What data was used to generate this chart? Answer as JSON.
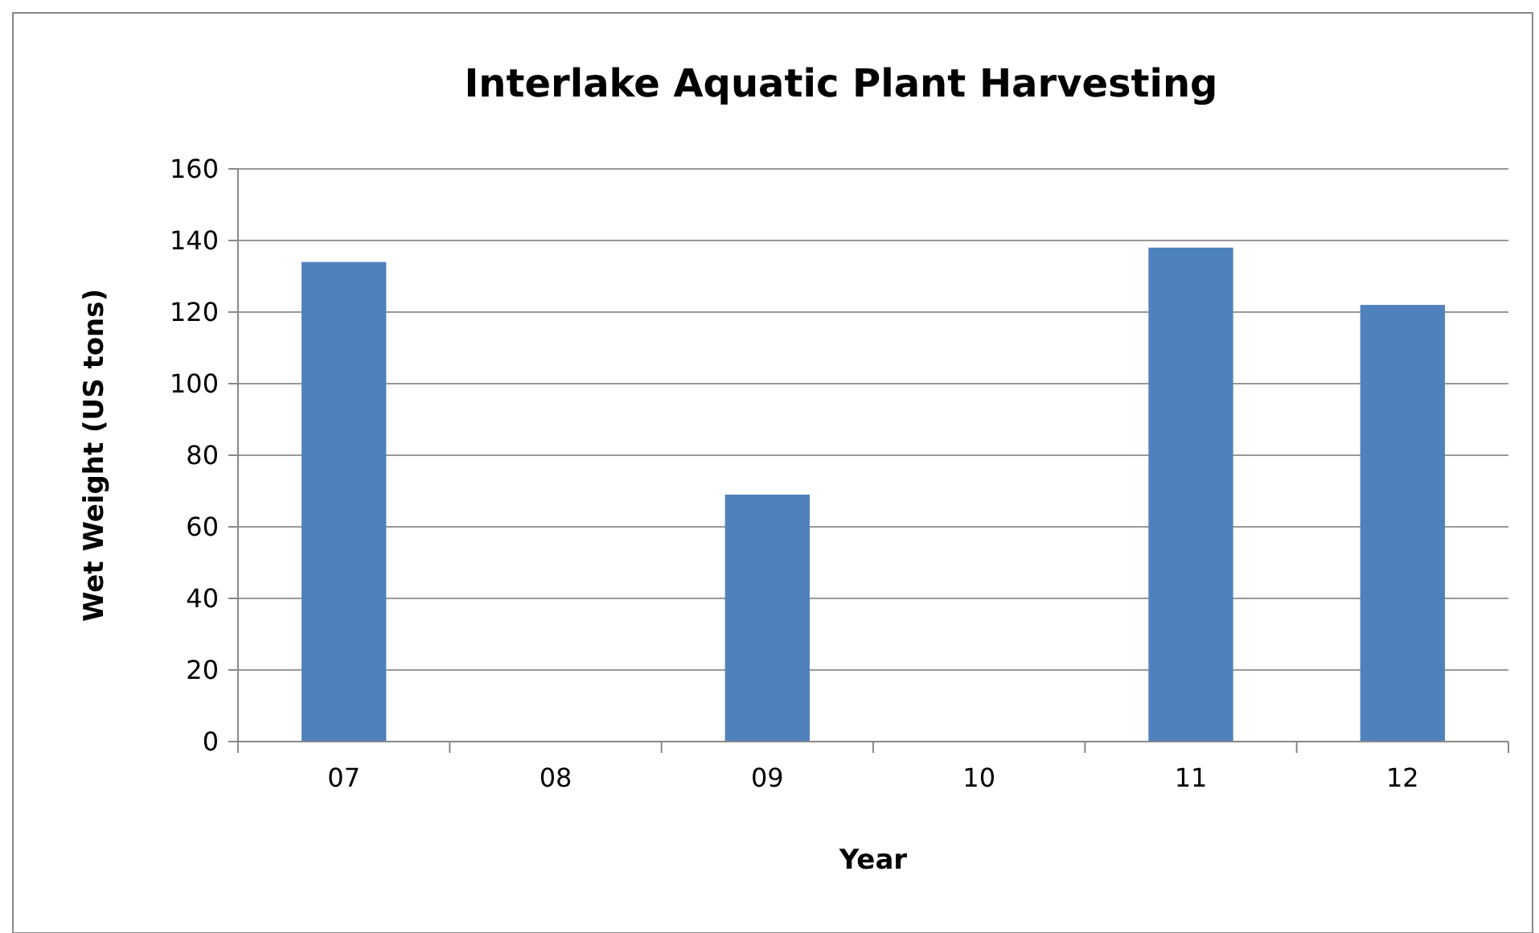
{
  "chart_data": {
    "type": "bar",
    "title": "Interlake Aquatic Plant Harvesting",
    "xlabel": "Year",
    "ylabel": "Wet Weight (US tons)",
    "categories": [
      "07",
      "08",
      "09",
      "10",
      "11",
      "12"
    ],
    "series": [
      {
        "color": "#4f81bd",
        "values": [
          134,
          null,
          69,
          null,
          138,
          122
        ]
      }
    ],
    "ylim": [
      0,
      160
    ],
    "yticks": [
      0,
      20,
      40,
      60,
      80,
      100,
      120,
      140,
      160
    ],
    "grid": "y"
  }
}
